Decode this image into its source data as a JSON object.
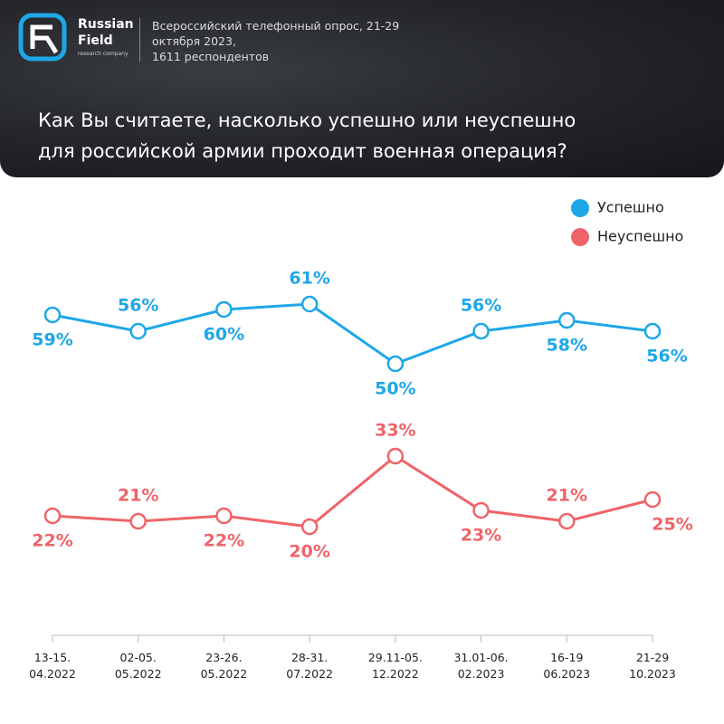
{
  "header": {
    "logo_name": [
      "Russian",
      "Field"
    ],
    "logo_sub": "research company",
    "subtitle": [
      "Всероссийский телефонный опрос, 21-29",
      "октября 2023,",
      "1611 респондентов"
    ],
    "title": [
      "Как Вы считаете, насколько  успешно или неуспешно",
      "для российской армии проходит военная операция?"
    ]
  },
  "chart_data": {
    "type": "line",
    "categories": [
      "13-15.\n04.2022",
      "02-05.\n05.2022",
      "23-26.\n05.2022",
      "28-31.\n07.2022",
      "29.11-05.\n12.2022",
      "31.01-06.\n02.2023",
      "16-19\n06.2023",
      "21-29\n10.2023"
    ],
    "series": [
      {
        "name": "Успешно",
        "color": "#1ea7e8",
        "values": [
          59,
          56,
          60,
          61,
          50,
          56,
          58,
          56
        ],
        "value_labels": [
          "59%",
          "56%",
          "60%",
          "61%",
          "50%",
          "56%",
          "58%",
          "56%"
        ]
      },
      {
        "name": "Неуспешно",
        "color": "#ef6468",
        "values": [
          22,
          21,
          22,
          20,
          33,
          23,
          21,
          25
        ],
        "value_labels": [
          "22%",
          "21%",
          "22%",
          "20%",
          "33%",
          "23%",
          "21%",
          "25%"
        ]
      }
    ],
    "ylim": [
      0,
      80
    ],
    "legend": "upper right"
  }
}
